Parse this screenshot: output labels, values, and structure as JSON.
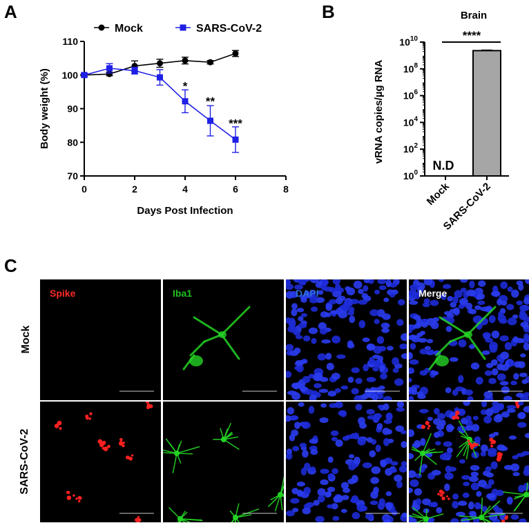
{
  "panels": {
    "a_letter": "A",
    "b_letter": "B",
    "c_letter": "C"
  },
  "chart_data": [
    {
      "type": "line",
      "panel": "A",
      "xlabel": "Days Post Infection",
      "ylabel": "Body weight (%)",
      "xlim": [
        0,
        8
      ],
      "ylim": [
        70,
        110
      ],
      "xticks": [
        0,
        2,
        4,
        6,
        8
      ],
      "yticks": [
        70,
        80,
        90,
        100,
        110
      ],
      "legend_position": "top",
      "series": [
        {
          "name": "Mock",
          "color": "#000000",
          "marker": "circle",
          "x": [
            0,
            1,
            2,
            3,
            4,
            5,
            6
          ],
          "y": [
            100,
            100.3,
            102.7,
            103.5,
            104.3,
            103.8,
            106.4
          ],
          "err": [
            0.4,
            0.5,
            1.5,
            1.2,
            1.0,
            0.5,
            0.9
          ]
        },
        {
          "name": "SARS-CoV-2",
          "color": "#1f1fe6",
          "marker": "square",
          "x": [
            0,
            1,
            2,
            3,
            4,
            5,
            6
          ],
          "y": [
            100,
            102,
            101.3,
            99.3,
            92.2,
            86.4,
            80.8
          ],
          "err": [
            0.5,
            1.4,
            1.0,
            2.3,
            3.4,
            4.5,
            3.8
          ]
        }
      ],
      "annotations": [
        {
          "x": 4,
          "y": 95.5,
          "text": "*"
        },
        {
          "x": 5,
          "y": 91,
          "text": "**"
        },
        {
          "x": 6,
          "y": 84.5,
          "text": "***"
        }
      ]
    },
    {
      "type": "bar",
      "panel": "B",
      "title": "Brain",
      "ylabel": "vRNA copies/µg RNA",
      "yscale": "log",
      "ylim_exp": [
        0,
        10
      ],
      "yticks_exp": [
        0,
        2,
        4,
        6,
        8,
        10
      ],
      "ytick_base": "10",
      "categories": [
        "Mock",
        "SARS-CoV-2"
      ],
      "values": [
        null,
        2300000000.0
      ],
      "err": [
        null,
        150000000.0
      ],
      "bar_color": "#a6a6a6",
      "labels": {
        "mock_nd": "N.D"
      },
      "significance": "****"
    }
  ],
  "micrographs": {
    "columns": [
      "Spike",
      "Iba1",
      "DAPI",
      "Merge"
    ],
    "column_colors": [
      "#ff2a2a",
      "#22c122",
      "#2f6fd8",
      "#ffffff"
    ],
    "rows": [
      "Mock",
      "SARS-CoV-2"
    ]
  }
}
